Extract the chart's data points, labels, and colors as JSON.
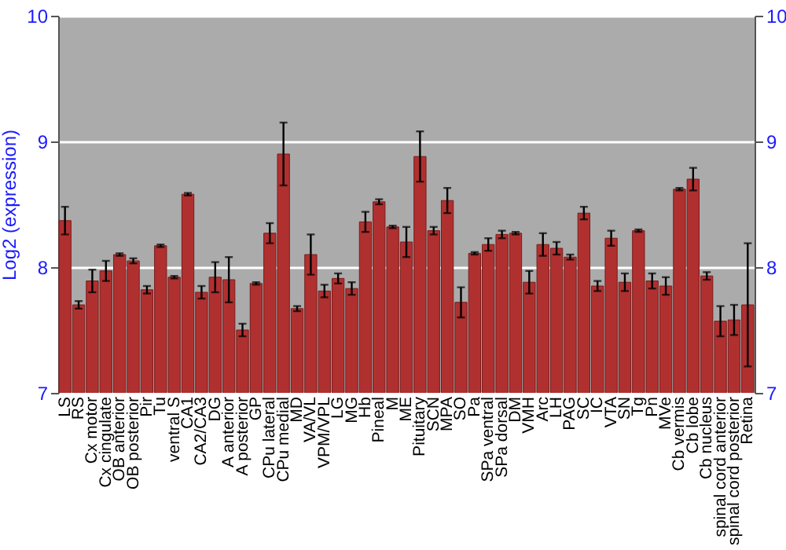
{
  "chart_data": {
    "type": "bar",
    "ylabel": "Log2 (expression)",
    "categories": [
      "LS",
      "RS",
      "Cx motor",
      "Cx cingulate",
      "OB anterior",
      "OB posterior",
      "Pir",
      "Tu",
      "ventral S",
      "CA1",
      "CA2/CA3",
      "DG",
      "A anterior",
      "A posterior",
      "GP",
      "CPu lateral",
      "CPu medial",
      "MD",
      "VA/VL",
      "VPM/VPL",
      "LG",
      "MG",
      "Hb",
      "Pineal",
      "M",
      "ME",
      "Pituitary",
      "SCN",
      "MPA",
      "SO",
      "Pa",
      "SPa ventral",
      "SPa dorsal",
      "DM",
      "VMH",
      "Arc",
      "LH",
      "PAG",
      "SC",
      "IC",
      "VTA",
      "SN",
      "Tg",
      "Pn",
      "MVe",
      "Cb vermis",
      "Cb lobe",
      "Cb nucleus",
      "spinal cord anterior",
      "spinal cord posterior",
      "Retina"
    ],
    "values": [
      8.37,
      7.7,
      7.89,
      7.97,
      8.1,
      8.05,
      7.82,
      8.17,
      7.92,
      8.58,
      7.8,
      7.92,
      7.9,
      7.5,
      7.87,
      8.27,
      8.9,
      7.67,
      8.1,
      7.81,
      7.91,
      7.83,
      8.36,
      8.52,
      8.32,
      8.2,
      8.88,
      8.29,
      8.53,
      7.72,
      8.11,
      8.18,
      8.26,
      8.27,
      7.88,
      8.18,
      8.15,
      8.08,
      8.43,
      7.85,
      8.23,
      7.88,
      8.29,
      7.89,
      7.85,
      8.62,
      8.7,
      7.93,
      7.57,
      7.58,
      7.7
    ],
    "errors": [
      0.11,
      0.03,
      0.09,
      0.08,
      0.01,
      0.02,
      0.03,
      0.01,
      0.01,
      0.01,
      0.05,
      0.12,
      0.18,
      0.05,
      0.01,
      0.08,
      0.25,
      0.02,
      0.16,
      0.05,
      0.04,
      0.05,
      0.08,
      0.02,
      0.01,
      0.12,
      0.2,
      0.03,
      0.1,
      0.12,
      0.01,
      0.05,
      0.03,
      0.01,
      0.09,
      0.09,
      0.05,
      0.02,
      0.05,
      0.04,
      0.06,
      0.07,
      0.01,
      0.06,
      0.07,
      0.01,
      0.09,
      0.03,
      0.12,
      0.12,
      0.49
    ],
    "color": "#b03030",
    "ylim": [
      7,
      10
    ],
    "yticks": [
      7,
      8,
      9,
      10
    ],
    "y2lim": [
      7,
      10
    ],
    "y2ticks": [
      7,
      8,
      9,
      10
    ],
    "grid": "y"
  }
}
